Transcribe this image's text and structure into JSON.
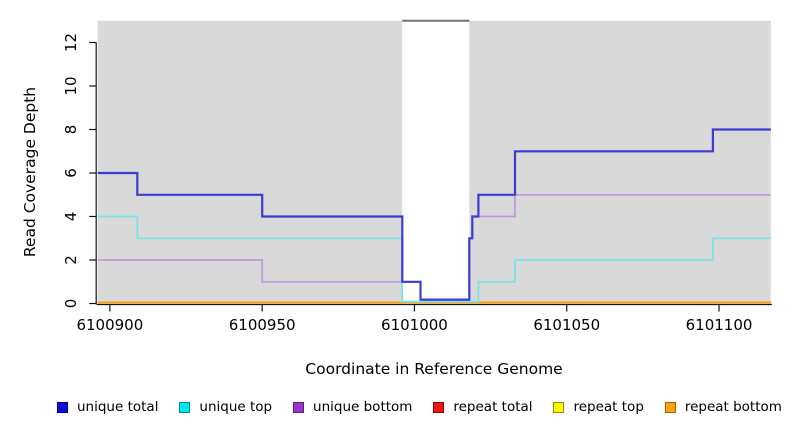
{
  "chart_data": {
    "type": "line",
    "subtype": "step",
    "title": "",
    "xlabel": "Coordinate in Reference Genome",
    "ylabel": "Read Coverage Depth",
    "xlim": [
      6100896,
      6101117
    ],
    "ylim": [
      0,
      13
    ],
    "x_ticks": [
      6100900,
      6100950,
      6101000,
      6101050,
      6101100
    ],
    "y_ticks": [
      0,
      2,
      4,
      6,
      8,
      10,
      12
    ],
    "grid": false,
    "legend_position": "bottom",
    "background": {
      "shade_color": "#d9d9d9",
      "shade_regions": [
        [
          6100896,
          6100996
        ],
        [
          6101018,
          6101117
        ]
      ],
      "gap_region": [
        6100996,
        6101018
      ],
      "gap_color": "#ffffff",
      "gap_top_border_color": "#737373"
    },
    "series": [
      {
        "name": "repeat total",
        "color": "#e81212",
        "width": 1.6,
        "points": [
          [
            6100896,
            0
          ],
          [
            6101117,
            0
          ]
        ]
      },
      {
        "name": "repeat top",
        "color": "#f2f200",
        "width": 1.6,
        "points": [
          [
            6100896,
            0
          ],
          [
            6101117,
            0
          ]
        ]
      },
      {
        "name": "repeat bottom",
        "color": "#ff9d0e",
        "width": 1.9,
        "points": [
          [
            6100896,
            0
          ],
          [
            6101117,
            0
          ]
        ]
      },
      {
        "name": "unique top",
        "color": "#79e4e8",
        "width": 1.7,
        "points": [
          [
            6100896,
            4
          ],
          [
            6100909,
            4
          ],
          [
            6100909,
            3
          ],
          [
            6100996,
            3
          ],
          [
            6100996,
            0
          ],
          [
            6101021,
            0
          ],
          [
            6101021,
            1
          ],
          [
            6101033,
            1
          ],
          [
            6101033,
            2
          ],
          [
            6101098,
            2
          ],
          [
            6101098,
            3
          ],
          [
            6101117,
            3
          ]
        ]
      },
      {
        "name": "unique bottom",
        "color": "#bd9ae0",
        "width": 1.7,
        "points": [
          [
            6100896,
            2
          ],
          [
            6100950,
            2
          ],
          [
            6100950,
            1
          ],
          [
            6101002,
            1
          ],
          [
            6101002,
            0
          ],
          [
            6101018,
            0
          ],
          [
            6101018,
            3
          ],
          [
            6101019,
            3
          ],
          [
            6101019,
            4
          ],
          [
            6101033,
            4
          ],
          [
            6101033,
            5
          ],
          [
            6101117,
            5
          ]
        ]
      },
      {
        "name": "unique total",
        "color": "#3c3cd2",
        "width": 2.2,
        "points": [
          [
            6100896,
            6
          ],
          [
            6100909,
            6
          ],
          [
            6100909,
            5
          ],
          [
            6100950,
            5
          ],
          [
            6100950,
            4
          ],
          [
            6100996,
            4
          ],
          [
            6100996,
            1
          ],
          [
            6101002,
            1
          ],
          [
            6101002,
            0
          ],
          [
            6101018,
            0
          ],
          [
            6101018,
            3
          ],
          [
            6101019,
            3
          ],
          [
            6101019,
            4
          ],
          [
            6101021,
            4
          ],
          [
            6101021,
            5
          ],
          [
            6101033,
            5
          ],
          [
            6101033,
            7
          ],
          [
            6101098,
            7
          ],
          [
            6101098,
            8
          ],
          [
            6101117,
            8
          ]
        ]
      }
    ],
    "legend": [
      {
        "label": "unique total",
        "fill": "#0f0fd6",
        "border": "#000090"
      },
      {
        "label": "unique top",
        "fill": "#00e8f0",
        "border": "#00898f"
      },
      {
        "label": "unique bottom",
        "fill": "#9933cc",
        "border": "#5c1f7a"
      },
      {
        "label": "repeat total",
        "fill": "#f01414",
        "border": "#8f0000"
      },
      {
        "label": "repeat top",
        "fill": "#f8f800",
        "border": "#8f8f00"
      },
      {
        "label": "repeat bottom",
        "fill": "#ffa011",
        "border": "#a86400"
      }
    ]
  }
}
